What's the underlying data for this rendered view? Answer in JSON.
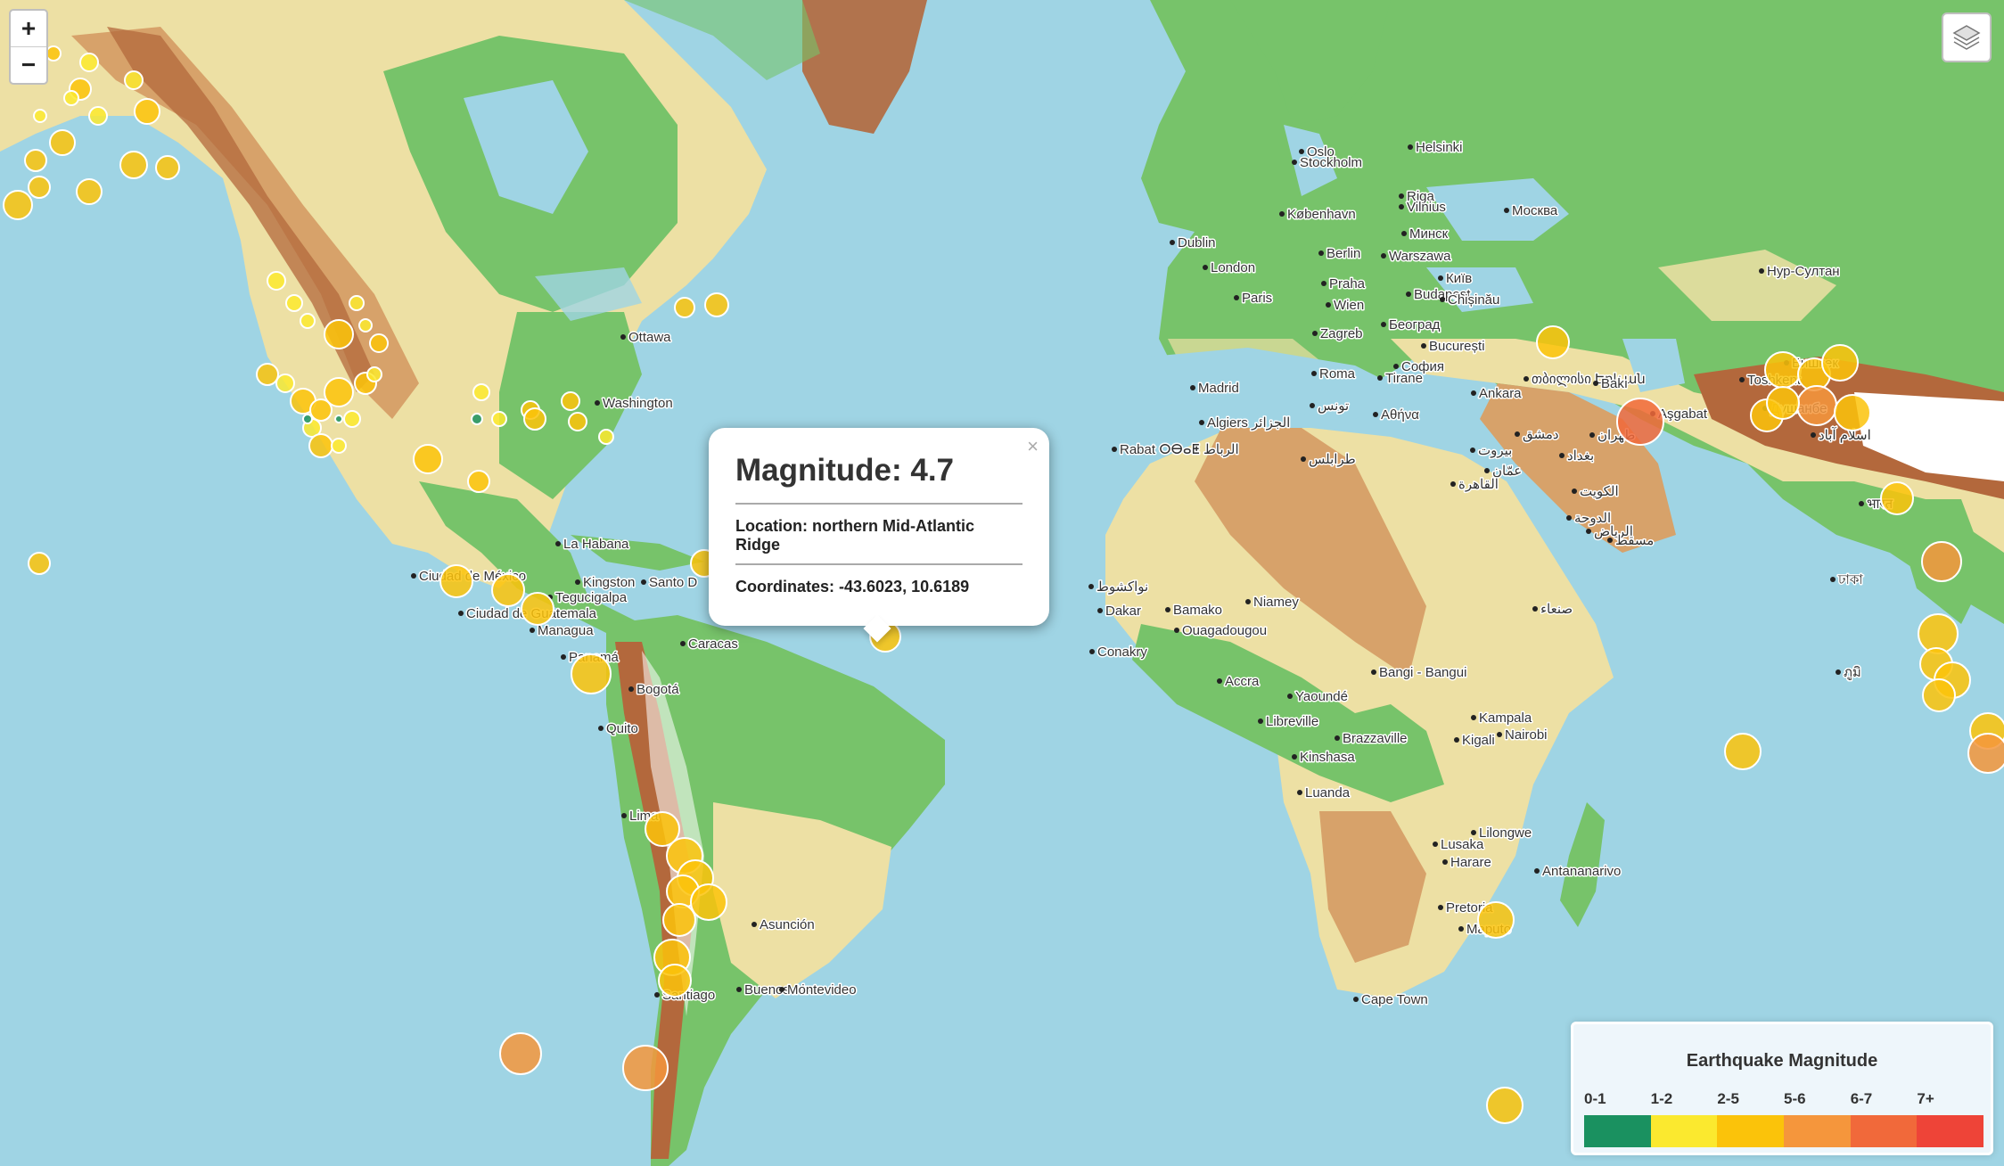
{
  "map": {
    "zoom_in_label": "+",
    "zoom_out_label": "−",
    "layers_icon": "layers-icon",
    "cities": [
      "Oslo",
      "Stockholm",
      "Helsinki",
      "Riga",
      "Vilnius",
      "Минск",
      "Москва",
      "København",
      "Berlin",
      "Warszawa",
      "Dublin",
      "London",
      "Paris",
      "Praha",
      "Wien",
      "Budapest",
      "Київ",
      "Chișinău",
      "Zagreb",
      "Београд",
      "București",
      "София",
      "Roma",
      "Tirane",
      "Madrid",
      "Rabat ⵔⴱⴰⵟ الرباط",
      "Algiers الجزائر",
      "تونس",
      "Αθήνα",
      "Ankara",
      "თბილისი Երևան",
      "Bakı",
      "Aşgabat",
      "Toshkent",
      "Бишкек",
      "Душанбе",
      "Нур-Султан",
      "اسلام آباد",
      "بيروت",
      "دمشق",
      "بغداد",
      "طهران",
      "عمّان",
      "القاهرة",
      "الكويت",
      "الدوحة",
      "الرياض",
      "مسقط",
      "صنعاء",
      "طرابلس",
      "نواكشوط",
      "Dakar",
      "Bamako",
      "Niamey",
      "Ouagadougou",
      "Conakry",
      "Accra",
      "Bangi - Bangui",
      "Yaoundé",
      "Libreville",
      "Brazzaville",
      "Kinshasa",
      "Kampala",
      "Kigali",
      "Nairobi",
      "Luanda",
      "Lilongwe",
      "Lusaka",
      "Harare",
      "Antananarivo",
      "Pretoria",
      "Maputo",
      "Cape Town",
      "Ottawa",
      "Washington",
      "La Habana",
      "Ciudad de México",
      "Ciudad de Guatemala",
      "Tegucigalpa",
      "Managua",
      "Kingston",
      "Santo D",
      "Panamá",
      "Caracas",
      "Bogotá",
      "Quito",
      "Lima",
      "Asunción",
      "Santiago",
      "Buenos Aires",
      "Montevideo",
      "ঢাকা",
      "भारत",
      "ภูมิ"
    ]
  },
  "popup": {
    "close_label": "×",
    "title": "Magnitude: 4.7",
    "location": "Location: northern Mid-Atlantic Ridge",
    "coordinates": "Coordinates: -43.6023, 10.6189"
  },
  "legend": {
    "title": "Earthquake Magnitude",
    "bins": [
      {
        "label": "0-1",
        "color": "#1a9160"
      },
      {
        "label": "1-2",
        "color": "#fbe92f"
      },
      {
        "label": "2-5",
        "color": "#fbc30a"
      },
      {
        "label": "5-6",
        "color": "#f5963c"
      },
      {
        "label": "6-7",
        "color": "#f1693a"
      },
      {
        "label": "7+",
        "color": "#ee4438"
      }
    ]
  },
  "colors": {
    "ocean": "#9fd4e4",
    "lowland": "#77c36a",
    "plain": "#ede0a4",
    "highland": "#d7a26a",
    "mountain": "#b3683c",
    "ice": "#ffffff"
  }
}
